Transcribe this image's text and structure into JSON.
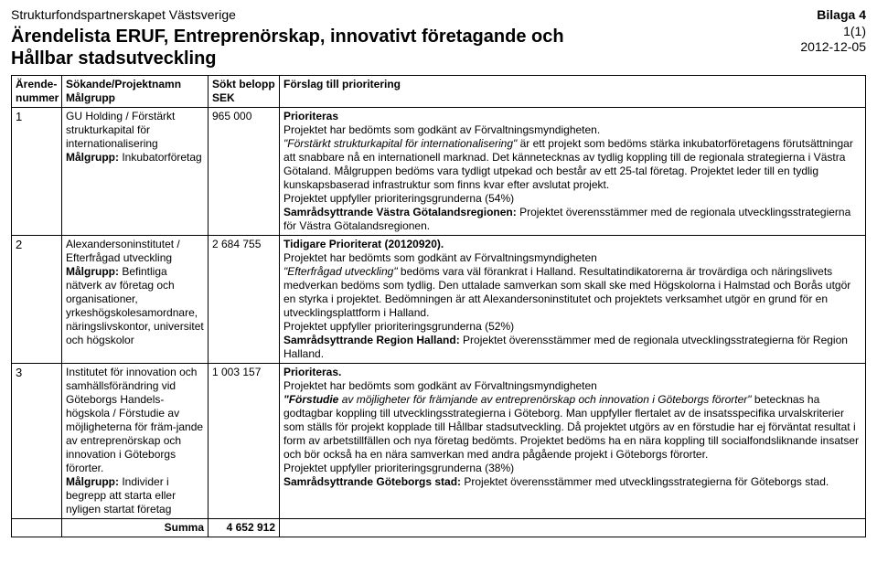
{
  "header": {
    "org_name": "Strukturfondspartnerskapet Västsverige",
    "doc_title_line1": "Ärendelista ERUF, Entreprenörskap, innovativt företagande och",
    "doc_title_line2": "Hållbar stadsutveckling",
    "attachment_label": "Bilaga 4",
    "page_num": "1(1)",
    "date": "2012-12-05"
  },
  "table": {
    "col_headers": {
      "num_line1": "Ärende-",
      "num_line2": "nummer",
      "applicant_line1": "Sökande/Projektnamn",
      "applicant_line2": "Målgrupp",
      "amount_line1": "Sökt belopp",
      "amount_line2": "SEK",
      "priority": "Förslag till prioritering"
    },
    "rows": [
      {
        "num": "1",
        "applicant_html": "GU Holding / Förstärkt strukturkapital för internationalisering<br><span class=\"b\">Målgrupp:</span> Inkubatorföretag",
        "amount": "965 000",
        "priority_html": "<span class=\"b\">Prioriteras</span><br>Projektet har bedömts som godkänt av Förvaltningsmyndigheten.<br><span class=\"i\">\"Förstärkt strukturkapital för internationalisering\"</span> är ett projekt som bedöms stärka inkubatorföretagens förutsättningar att snabbare nå en internationell marknad. Det kännetecknas av tydlig koppling till de regionala strategierna i Västra Götaland. Målgruppen bedöms vara tydligt utpekad och består av ett 25-tal företag. Projektet leder till en tydlig kunskapsbaserad infrastruktur som finns kvar efter avslutat projekt.<br>Projektet uppfyller prioriteringsgrunderna (54%)<br><span class=\"b\">Samrådsyttrande Västra Götalandsregionen:</span> Projektet överensstämmer med de regionala utvecklingsstrategierna för Västra Götalandsregionen."
      },
      {
        "num": "2",
        "applicant_html": "Alexandersoninstitutet / Efterfrågad utveckling<br><span class=\"b\">Målgrupp:</span> Befintliga nätverk av företag och organisationer, yrkeshögskolesamordnare, näringslivskontor, universitet och högskolor",
        "amount": "2 684 755",
        "priority_html": "<span class=\"b\">Tidigare Prioriterat (20120920).</span><br>Projektet har bedömts som godkänt av Förvaltningsmyndigheten<br><span class=\"i\">\"Efterfrågad utveckling\"</span> bedöms vara väl förankrat i Halland. Resultatindikatorerna är trovärdiga och näringslivets medverkan bedöms som tydlig. Den uttalade samverkan som skall ske med Högskolorna i Halmstad och Borås utgör en styrka i projektet. Bedömningen är att Alexandersoninstitutet och projektets verksamhet utgör en grund för en utvecklingsplattform i Halland.<br>Projektet uppfyller prioriteringsgrunderna (52%)<br><span class=\"b\">Samrådsyttrande Region Halland:</span> Projektet överensstämmer med de regionala utvecklingsstrategierna för Region Halland."
      },
      {
        "num": "3",
        "applicant_html": "Institutet för innovation och samhällsförändring vid Göteborgs Handels-högskola / Förstudie av möjligheterna för främ-jande av entreprenörskap och innovation i Göteborgs förorter.<br><span class=\"b\">Målgrupp:</span> Individer i begrepp att starta eller nyligen startat företag",
        "amount": "1 003 157",
        "priority_html": "<span class=\"b\">Prioriteras.</span><br>Projektet har bedömts som godkänt av Förvaltningsmyndigheten<br><span class=\"b i\">\"Förstudie</span><span class=\"i\"> av möjligheter för främjande av entreprenörskap och innovation i Göteborgs förorter\"</span> betecknas ha godtagbar koppling till utvecklingsstrategierna i Göteborg. Man uppfyller flertalet av de insatsspecifika urvalskriterier som ställs för projekt kopplade till Hållbar stadsutveckling. Då projektet utgörs av en förstudie har ej förväntat resultat i form av arbetstillfällen och nya företag bedömts. Projektet bedöms ha en nära koppling till socialfondsliknande insatser och bör också ha en nära samverkan med andra pågående projekt i Göteborgs förorter.<br>Projektet uppfyller prioriteringsgrunderna (38%)<br><span class=\"b\">Samrådsyttrande Göteborgs stad:</span> Projektet överensstämmer med utvecklingsstrategierna för Göteborgs stad."
      }
    ],
    "sum_label": "Summa",
    "sum_amount": "4 652 912"
  }
}
